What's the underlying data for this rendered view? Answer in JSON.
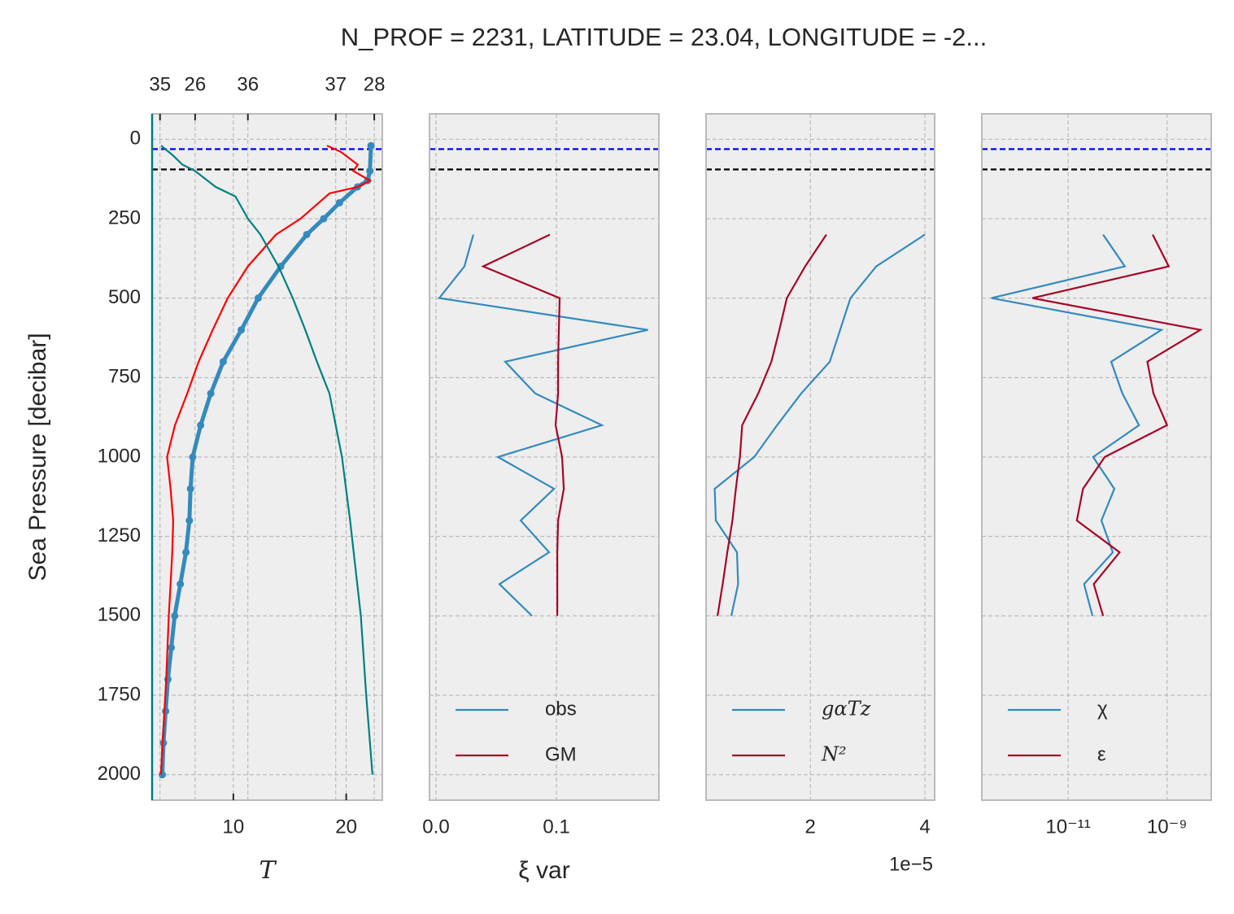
{
  "chart_data": [
    {
      "type": "line",
      "title": "N_PROF = 2231, LATITUDE = 23.04, LONGITUDE = -2...",
      "ylabel": "Sea Pressure [decibar]",
      "xlabel": "T",
      "ylim": [
        2080,
        -80
      ],
      "yticks": [
        0,
        250,
        500,
        750,
        1000,
        1250,
        1500,
        1750,
        2000
      ],
      "xlim": [
        2.8,
        23.2
      ],
      "xticks": [
        10,
        20
      ],
      "x2lim": [
        34.91,
        37.53
      ],
      "x2ticks": [
        35,
        36,
        37
      ],
      "x3lim": [
        25.52,
        28.09
      ],
      "x3ticks": [
        26,
        28
      ],
      "grid": true,
      "left_spine_color": "#008080",
      "hlines": [
        {
          "value": 31,
          "color": "#0000ff"
        },
        {
          "value": 95,
          "color": "#000000"
        }
      ],
      "series": [
        {
          "color": "#348ABD",
          "marker": "o",
          "pressure": [
            20,
            100,
            130,
            150,
            200,
            250,
            300,
            400,
            500,
            600,
            700,
            800,
            900,
            1000,
            1100,
            1200,
            1300,
            1400,
            1500,
            1600,
            1700,
            1800,
            1900,
            2000
          ],
          "values": [
            22.2,
            22.1,
            21.9,
            21.0,
            19.4,
            18.0,
            16.5,
            14.2,
            12.2,
            10.7,
            9.1,
            8.0,
            7.1,
            6.4,
            6.2,
            6.1,
            5.8,
            5.3,
            4.8,
            4.5,
            4.2,
            4.0,
            3.8,
            3.7
          ]
        },
        {
          "color": "#ff0000",
          "axis": "x2",
          "pressure": [
            20,
            40,
            80,
            100,
            130,
            150,
            170,
            250,
            300,
            400,
            500,
            600,
            700,
            800,
            900,
            1000,
            1100,
            1200,
            1300,
            1400,
            1500,
            1700,
            2000
          ],
          "values": [
            36.9,
            37.06,
            37.25,
            37.2,
            37.39,
            37.25,
            36.93,
            36.6,
            36.32,
            36.0,
            35.77,
            35.6,
            35.44,
            35.31,
            35.17,
            35.08,
            35.12,
            35.15,
            35.14,
            35.12,
            35.1,
            35.07,
            35.01
          ]
        },
        {
          "color": "#008080",
          "axis": "x3",
          "pressure": [
            20,
            50,
            80,
            100,
            150,
            180,
            250,
            300,
            400,
            500,
            600,
            700,
            800,
            900,
            1000,
            1200,
            1500,
            1750,
            2000
          ],
          "values": [
            25.62,
            25.75,
            25.86,
            26.0,
            26.23,
            26.45,
            26.59,
            26.73,
            26.93,
            27.09,
            27.23,
            27.36,
            27.5,
            27.57,
            27.64,
            27.73,
            27.85,
            27.91,
            27.98
          ]
        }
      ]
    },
    {
      "type": "line",
      "xlabel": "ξ var",
      "ylim": [
        2080,
        -80
      ],
      "xlim": [
        -0.0054,
        0.1851
      ],
      "xticks": [
        {
          "value": 0,
          "label": "0.0"
        },
        0.1
      ],
      "grid": true,
      "hlines": [
        {
          "value": 31,
          "color": "#0000ff"
        },
        {
          "value": 95,
          "color": "#000000"
        }
      ],
      "series": [
        {
          "name": "obs",
          "color": "#348ABD",
          "pressure": [
            300,
            400,
            500,
            600,
            700,
            800,
            900,
            1000,
            1100,
            1200,
            1300,
            1400,
            1500
          ],
          "values": [
            0.031,
            0.0236,
            0.0027,
            0.176,
            0.0574,
            0.0824,
            0.1378,
            0.0514,
            0.098,
            0.0703,
            0.0939,
            0.0527,
            0.0797
          ]
        },
        {
          "name": "GM",
          "color": "#A60628",
          "pressure": [
            300,
            400,
            500,
            600,
            700,
            800,
            900,
            1000,
            1100,
            1200,
            1300,
            1400,
            1500
          ],
          "values": [
            0.0946,
            0.0392,
            0.1027,
            0.102,
            0.1014,
            0.1014,
            0.0993,
            0.1047,
            0.1061,
            0.1014,
            0.1007,
            0.1007,
            0.1007
          ]
        }
      ]
    },
    {
      "type": "line",
      "x_offset_label": "1e−5",
      "ylim": [
        2080,
        -80
      ],
      "xlim": [
        0.18,
        4.17
      ],
      "xticks": [
        2,
        4
      ],
      "grid": true,
      "hlines": [
        {
          "value": 31,
          "color": "#0000ff"
        },
        {
          "value": 95,
          "color": "#000000"
        }
      ],
      "series": [
        {
          "name": "gαTz",
          "color": "#348ABD",
          "pressure": [
            300,
            400,
            500,
            600,
            700,
            800,
            900,
            1000,
            1100,
            1200,
            1300,
            1400,
            1500
          ],
          "values": [
            4.0,
            3.15,
            2.7,
            2.52,
            2.34,
            1.84,
            1.42,
            1.02,
            0.33,
            0.35,
            0.72,
            0.74,
            0.62
          ]
        },
        {
          "name": "N²",
          "color": "#A60628",
          "pressure": [
            300,
            400,
            500,
            600,
            700,
            800,
            900,
            1000,
            1100,
            1200,
            1300,
            1400,
            1500
          ],
          "values": [
            2.28,
            1.91,
            1.59,
            1.46,
            1.32,
            1.09,
            0.81,
            0.77,
            0.7,
            0.64,
            0.55,
            0.47,
            0.38
          ]
        }
      ]
    },
    {
      "type": "line",
      "xscale": "log",
      "ylim": [
        2080,
        -80
      ],
      "xlim": [
        1.8e-13,
        7.8e-09
      ],
      "xticks": [
        {
          "value": 1e-11,
          "label": "10⁻¹¹"
        },
        {
          "value": 1e-09,
          "label": "10⁻⁹"
        }
      ],
      "grid": true,
      "hlines": [
        {
          "value": 31,
          "color": "#0000ff"
        },
        {
          "value": 95,
          "color": "#000000"
        }
      ],
      "series": [
        {
          "name": "χ",
          "color": "#348ABD",
          "pressure": [
            300,
            400,
            500,
            600,
            700,
            800,
            900,
            1000,
            1100,
            1200,
            1300,
            1400,
            1500
          ],
          "values": [
            5.1e-11,
            1.4e-10,
            2.8e-13,
            7.7e-10,
            7.4e-11,
            1.25e-10,
            2.7e-10,
            3.2e-11,
            8.6e-11,
            4.7e-11,
            8e-11,
            2.1e-11,
            3.1e-11
          ]
        },
        {
          "name": "ε",
          "color": "#A60628",
          "pressure": [
            300,
            400,
            500,
            600,
            700,
            800,
            900,
            1000,
            1100,
            1200,
            1300,
            1400,
            1500
          ],
          "values": [
            5.1e-10,
            1.08e-09,
            1.9e-12,
            4.7e-09,
            4e-10,
            5.3e-10,
            1e-09,
            5.5e-11,
            2e-11,
            1.5e-11,
            1.1e-10,
            3.3e-11,
            5.1e-11
          ]
        }
      ]
    }
  ]
}
